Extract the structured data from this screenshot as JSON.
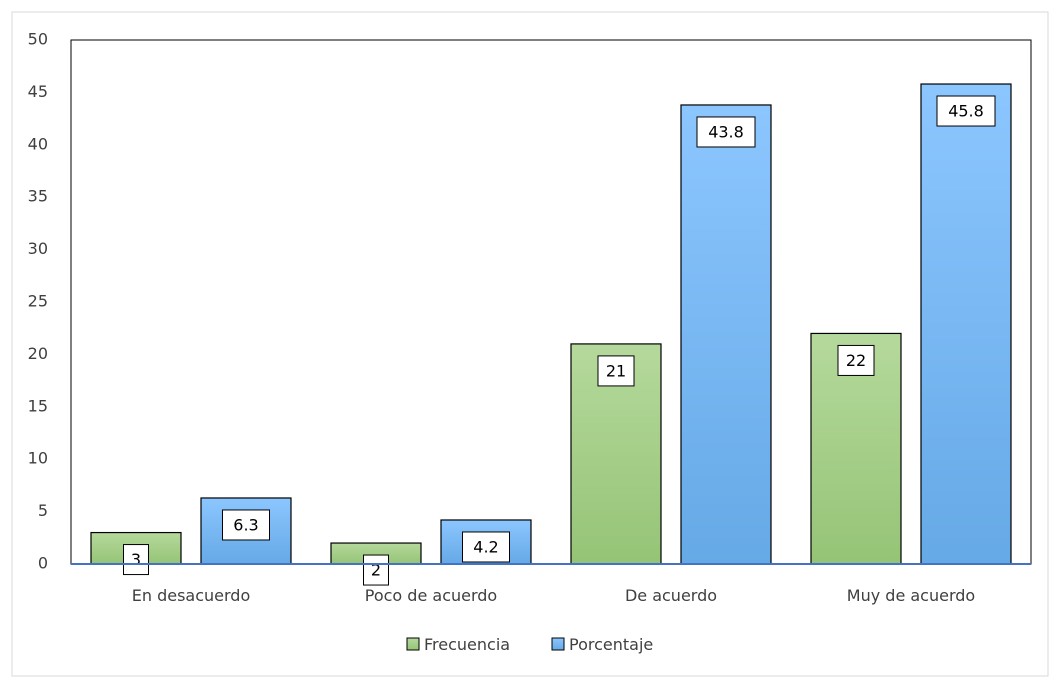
{
  "chart_data": {
    "type": "bar",
    "title": "",
    "xlabel": "",
    "ylabel": "",
    "ylim": [
      0,
      50
    ],
    "yticks": [
      0,
      5,
      10,
      15,
      20,
      25,
      30,
      35,
      40,
      45,
      50
    ],
    "grid": false,
    "legend_position": "bottom",
    "categories": [
      "En desacuerdo",
      "Poco de acuerdo",
      "De acuerdo",
      "Muy de acuerdo"
    ],
    "series": [
      {
        "name": "Frecuencia",
        "values": [
          3,
          2,
          21,
          22
        ],
        "labels": [
          "3",
          "2",
          "21",
          "22"
        ],
        "color": "#a9d18e"
      },
      {
        "name": "Porcentaje",
        "values": [
          6.3,
          4.2,
          43.8,
          45.8
        ],
        "labels": [
          "6.3",
          "4.2",
          "43.8",
          "45.8"
        ],
        "color": "#7fbdf5"
      }
    ]
  }
}
